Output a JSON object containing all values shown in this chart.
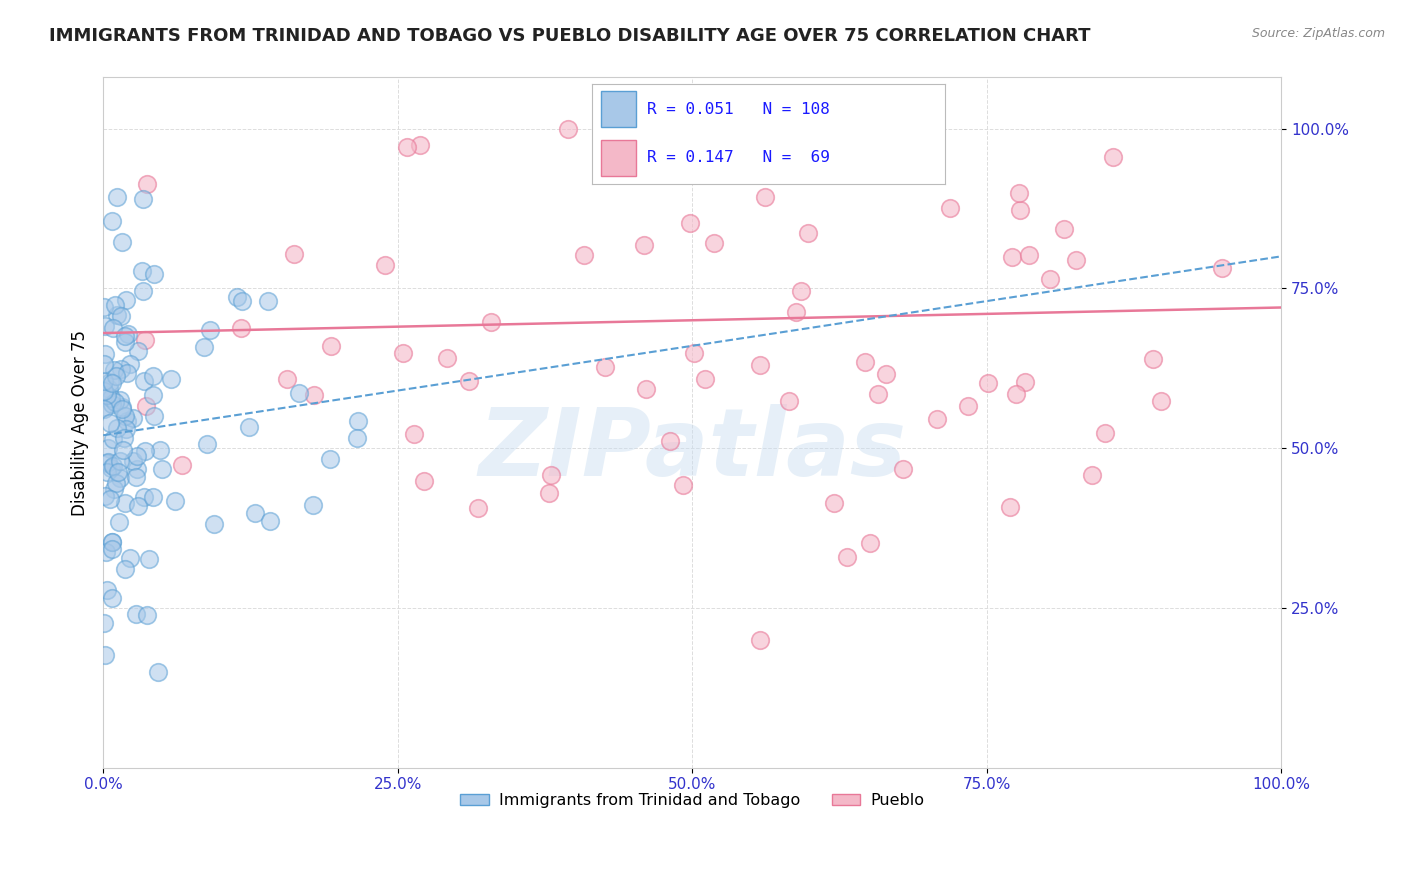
{
  "title": "IMMIGRANTS FROM TRINIDAD AND TOBAGO VS PUEBLO DISABILITY AGE OVER 75 CORRELATION CHART",
  "source_text": "Source: ZipAtlas.com",
  "ylabel": "Disability Age Over 75",
  "x_tick_labels": [
    "0.0%",
    "25.0%",
    "50.0%",
    "75.0%",
    "100.0%"
  ],
  "y_tick_labels": [
    "25.0%",
    "50.0%",
    "75.0%",
    "100.0%"
  ],
  "x_ticks": [
    0.0,
    25.0,
    50.0,
    75.0,
    100.0
  ],
  "y_ticks": [
    25.0,
    50.0,
    75.0,
    100.0
  ],
  "xlim": [
    0.0,
    100.0
  ],
  "ylim": [
    0.0,
    108.0
  ],
  "blue_R": 0.051,
  "blue_N": 108,
  "pink_R": 0.147,
  "pink_N": 69,
  "blue_color": "#a8c8e8",
  "pink_color": "#f4b8c8",
  "blue_edge": "#5a9fd4",
  "pink_edge": "#e87898",
  "watermark": "ZIPatlas",
  "legend_label_blue": "Immigrants from Trinidad and Tobago",
  "legend_label_pink": "Pueblo",
  "title_color": "#1a1aff",
  "title_fontsize": 13,
  "source_fontsize": 9,
  "legend_R_N_color": "#1a1aff",
  "tick_color": "#3333cc",
  "grid_color": "#dddddd",
  "watermark_color": "#c8ddf0"
}
